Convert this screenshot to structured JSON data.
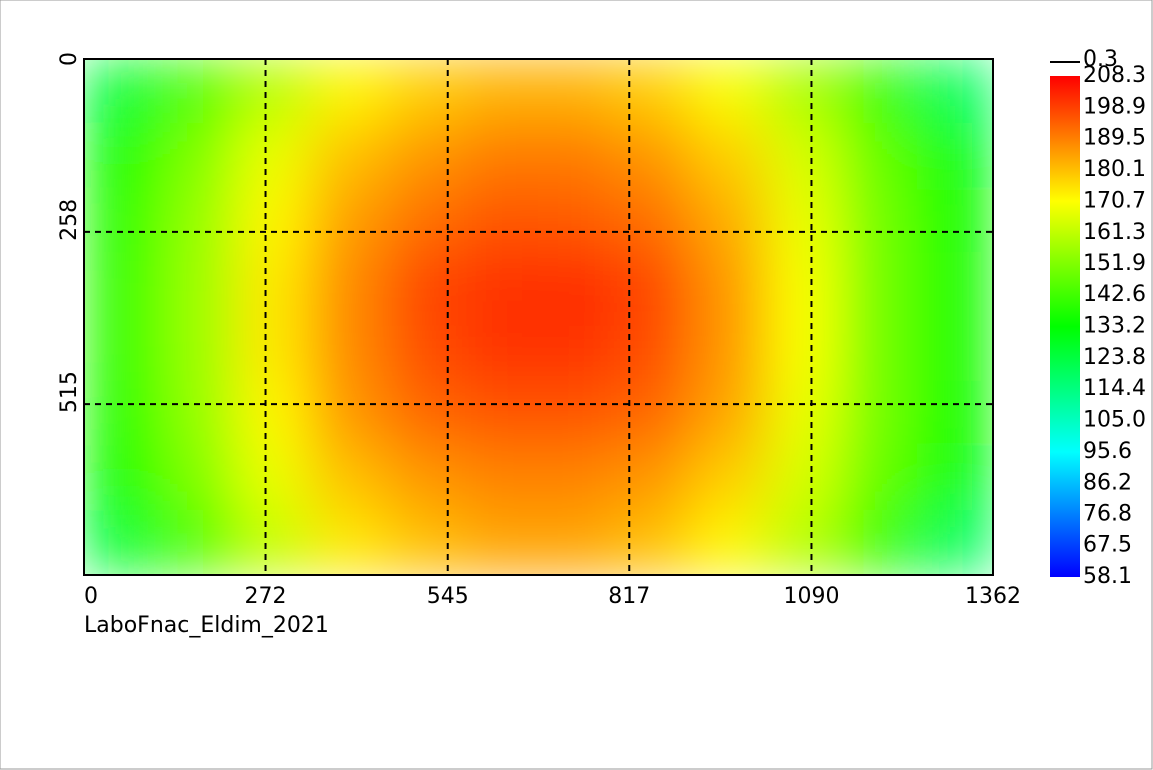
{
  "chart_data": {
    "type": "heatmap",
    "caption": "LaboFnac_Eldim_2021",
    "xlim": [
      0,
      1362
    ],
    "ylim": [
      0,
      770
    ],
    "xticks": [
      0,
      272,
      545,
      817,
      1090,
      1362
    ],
    "yticks": [
      0,
      258,
      515
    ],
    "grid": true,
    "values": [
      [
        125,
        145,
        160,
        172,
        178,
        182,
        182,
        178,
        170,
        158,
        142,
        120
      ],
      [
        135,
        152,
        168,
        180,
        186,
        190,
        190,
        186,
        178,
        165,
        148,
        132
      ],
      [
        138,
        155,
        172,
        185,
        192,
        196,
        195,
        192,
        183,
        168,
        150,
        135
      ],
      [
        140,
        156,
        174,
        188,
        198,
        201,
        202,
        198,
        186,
        170,
        150,
        136
      ],
      [
        140,
        156,
        174,
        188,
        197,
        201,
        201,
        197,
        186,
        170,
        150,
        136
      ],
      [
        138,
        155,
        172,
        186,
        193,
        196,
        196,
        193,
        184,
        168,
        150,
        135
      ],
      [
        135,
        152,
        168,
        180,
        186,
        189,
        189,
        186,
        178,
        165,
        148,
        132
      ],
      [
        125,
        145,
        162,
        174,
        180,
        184,
        184,
        180,
        172,
        160,
        142,
        120
      ]
    ],
    "colors": [
      "#0000ff",
      "#00ffff",
      "#00ff00",
      "#ffff00",
      "#ff0000"
    ],
    "clim": [
      58.1,
      208.3
    ],
    "cticks": [
      208.3,
      198.9,
      189.5,
      180.1,
      170.7,
      161.3,
      151.9,
      142.6,
      133.2,
      123.8,
      114.4,
      {
        "value": 105,
        "label": "105.0"
      },
      95.6,
      86.2,
      76.8,
      67.5,
      58.1
    ],
    "line_legend": 0.3
  }
}
